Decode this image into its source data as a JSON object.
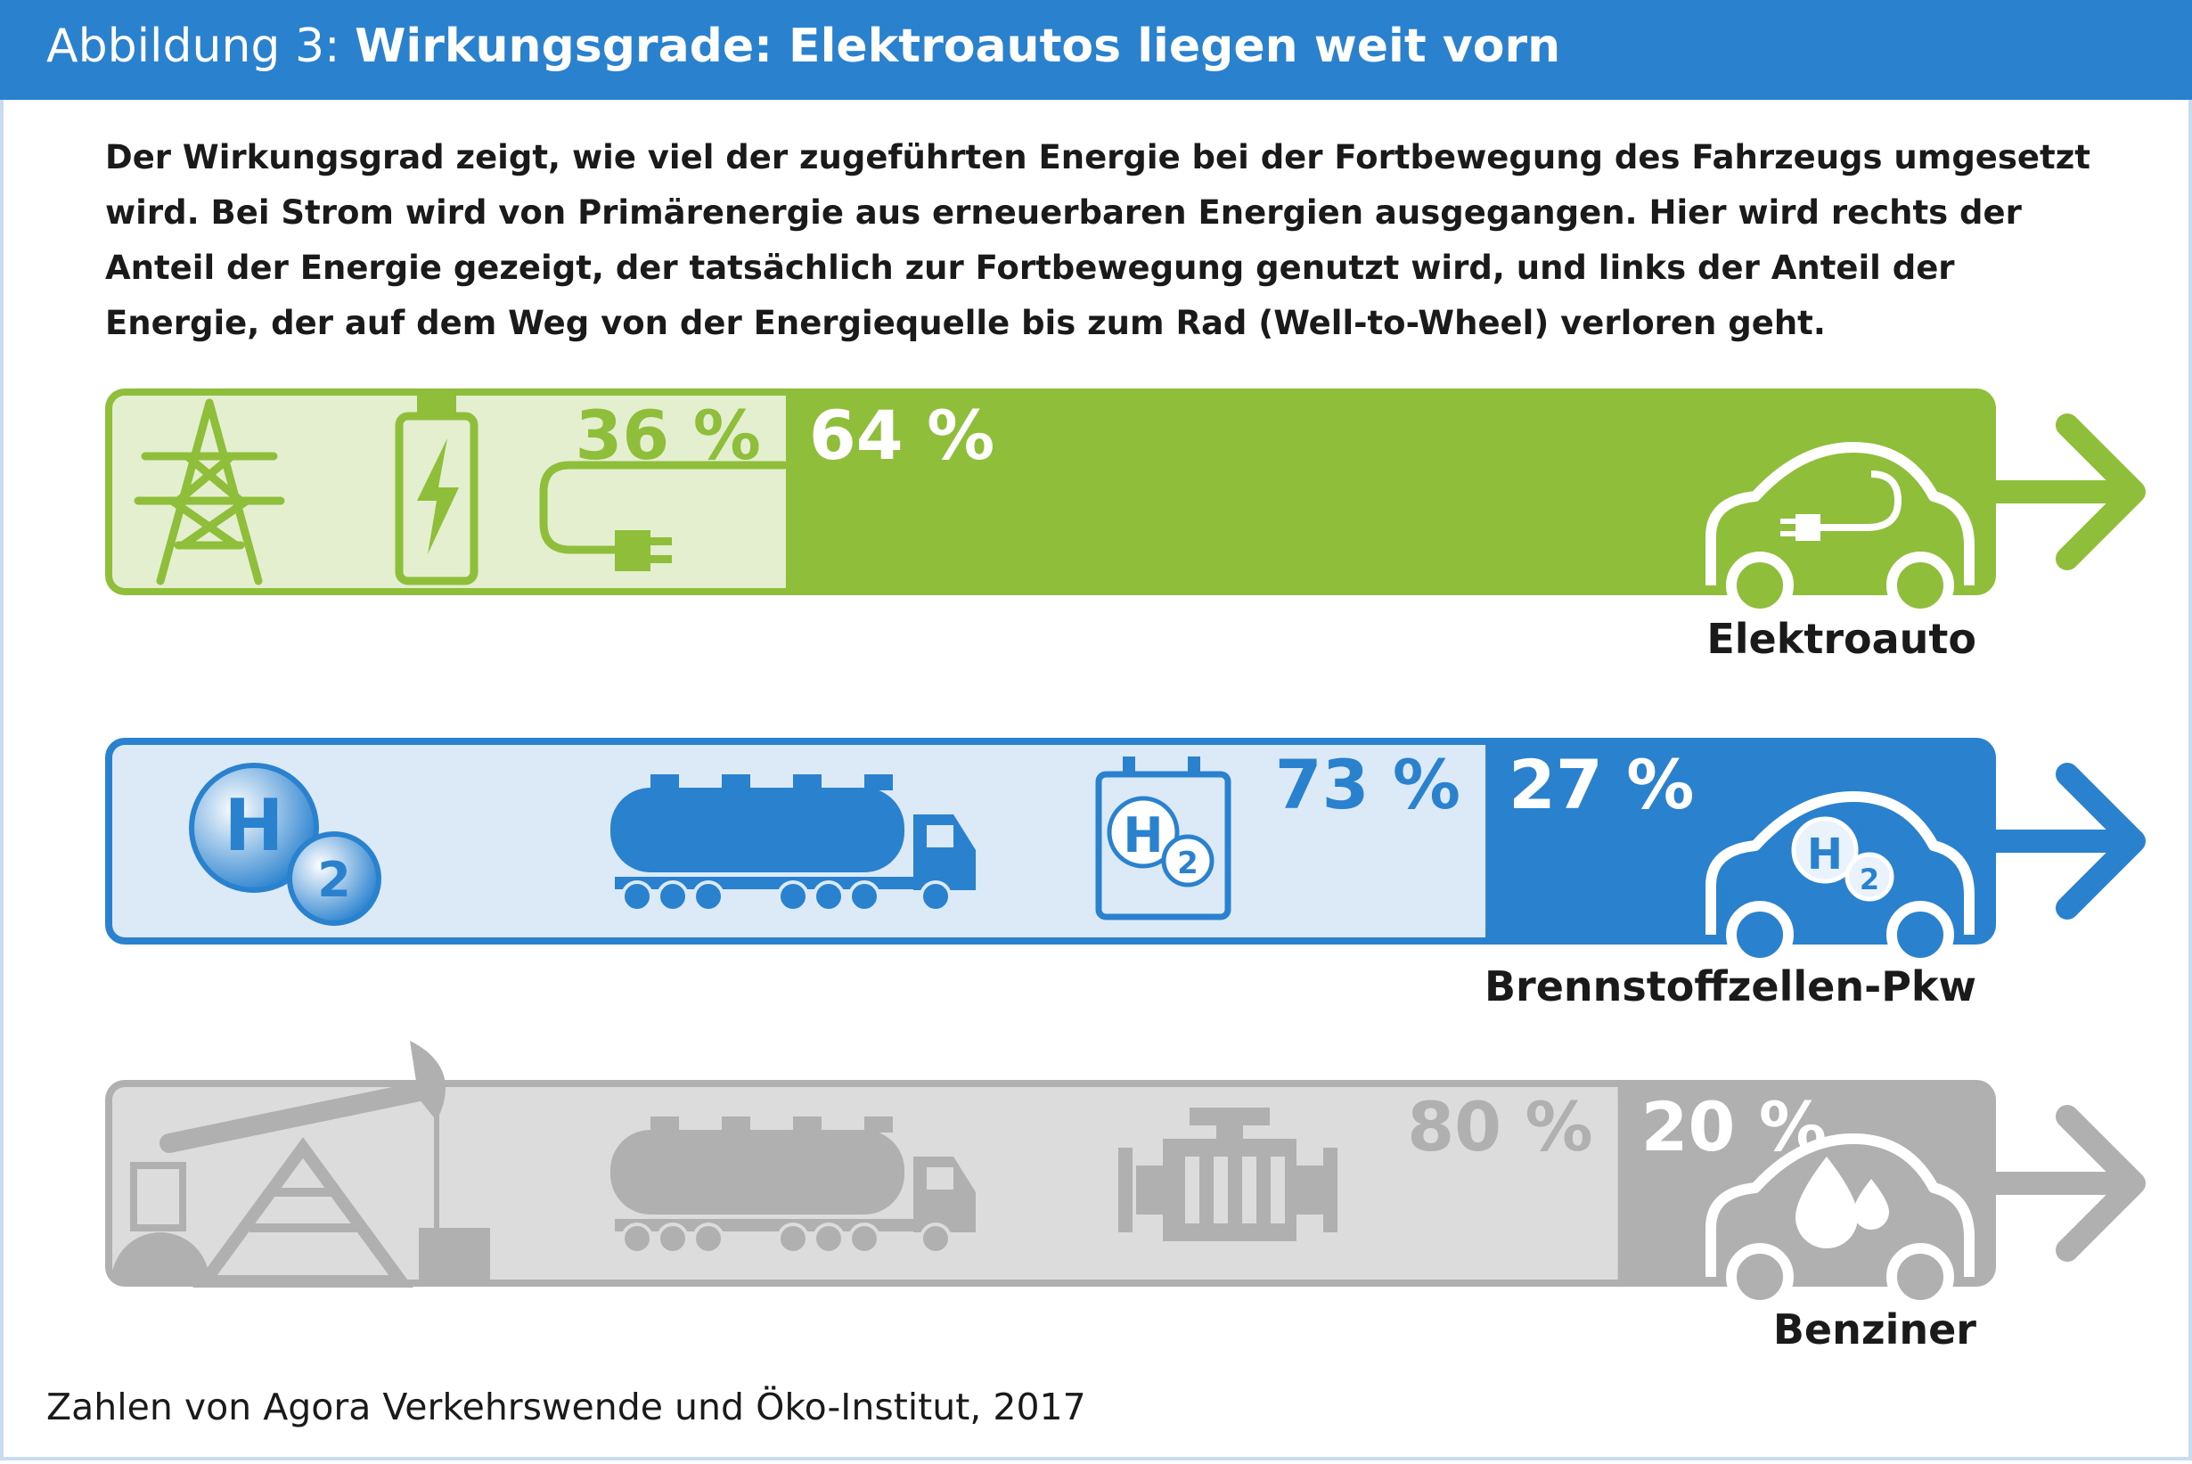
{
  "header": {
    "prefix": "Abbildung 3:",
    "title": "Wirkungsgrade: Elektroautos liegen weit vorn"
  },
  "intro": "Der Wirkungsgrad zeigt, wie viel der zugeführten Energie bei der Fortbewegung des Fahrzeugs umgesetzt wird. Bei Strom wird von Primärenergie aus erneuerbaren Energien ausgegangen. Hier wird rechts der Anteil der Energie gezeigt, der tatsächlich zur Fortbewegung genutzt wird, und links der Anteil der Energie, der auf dem Weg von der Energiequelle bis zum Rad (Well-to-Wheel) verloren geht.",
  "source": "Zahlen von Agora Verkehrswende und Öko-Institut, 2017",
  "colors": {
    "header": "#2a82cf",
    "green": "#8fbe3a",
    "green_light": "#e3efcf",
    "blue": "#2a82cf",
    "blue_light": "#dce9f6",
    "gray": "#b0b0b0",
    "gray_light": "#dcdcdc"
  },
  "chart_data": {
    "type": "bar",
    "orientation": "horizontal",
    "stacked": true,
    "categories": [
      "Elektroauto",
      "Brennstoffzellen-Pkw",
      "Benziner"
    ],
    "series": [
      {
        "name": "",
        "role": "verloren",
        "values": [
          36,
          73,
          80
        ],
        "labels": [
          "36 %",
          "73 %",
          "80 %"
        ]
      },
      {
        "name": "",
        "role": "genutzt",
        "values": [
          64,
          27,
          20
        ],
        "labels": [
          "64 %",
          "27 %",
          "20 %"
        ]
      }
    ],
    "unit": "%",
    "xlim": [
      0,
      100
    ],
    "icons": [
      [
        "power-pylon-icon",
        "battery-icon",
        "plug-icon",
        "electric-car-icon"
      ],
      [
        "hydrogen-icon",
        "tanker-truck-icon",
        "hydrogen-tank-icon",
        "hydrogen-car-icon"
      ],
      [
        "oil-pump-icon",
        "tanker-truck-icon",
        "engine-icon",
        "petrol-car-icon"
      ]
    ]
  }
}
